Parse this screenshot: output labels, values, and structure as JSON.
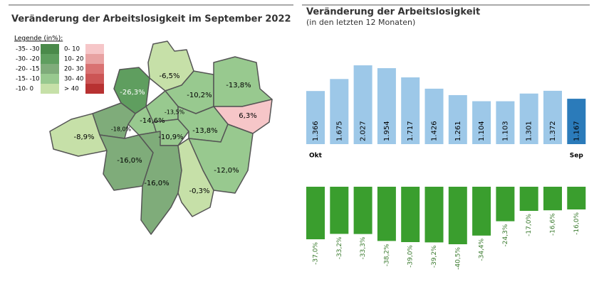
{
  "map": {
    "title": "Veränderung der Arbeitslosigkeit im September 2022",
    "legend_title": "Legende (in%):",
    "legend": [
      {
        "label": "-35- -30",
        "color": "#4a8a4a"
      },
      {
        "label": "-30- -20",
        "color": "#5f9e5f"
      },
      {
        "label": "-20- -15",
        "color": "#7fac7a"
      },
      {
        "label": "-15- -10",
        "color": "#98c98f"
      },
      {
        "label": "-10- 0",
        "color": "#c6e0a8"
      },
      {
        "label": "0- 10",
        "color": "#f6c6c8"
      },
      {
        "label": "10- 20",
        "color": "#e8a2a2"
      },
      {
        "label": "20- 30",
        "color": "#d97272"
      },
      {
        "label": "30- 40",
        "color": "#cc5555"
      },
      {
        "label": "> 40",
        "color": "#b83232"
      }
    ],
    "regions": [
      {
        "value": -6.5,
        "label": "-6,5%",
        "color": "#c6e0a8"
      },
      {
        "value": -26.3,
        "label": "-26,3%",
        "color": "#5f9e5f"
      },
      {
        "value": -10.2,
        "label": "-10,2%",
        "color": "#98c98f"
      },
      {
        "value": -13.8,
        "label": "-13,8%",
        "color": "#98c98f"
      },
      {
        "value": 6.3,
        "label": "6,3%",
        "color": "#f6c6c8"
      },
      {
        "value": -13.5,
        "label": "-13,5%",
        "color": "#98c98f"
      },
      {
        "value": -14.6,
        "label": "-14,6%",
        "color": "#98c98f"
      },
      {
        "value": -18.0,
        "label": "-18,0%",
        "color": "#7fac7a"
      },
      {
        "value": -8.9,
        "label": "-8,9%",
        "color": "#c6e0a8"
      },
      {
        "value": -10.9,
        "label": "-10,9%",
        "color": "#98c98f"
      },
      {
        "value": -13.8,
        "label": "-13,8%",
        "color": "#98c98f"
      },
      {
        "value": -16.0,
        "label": "-16,0%",
        "color": "#7fac7a"
      },
      {
        "value": -16.0,
        "label": "-16,0%",
        "color": "#7fac7a"
      },
      {
        "value": -12.0,
        "label": "-12,0%",
        "color": "#98c98f"
      },
      {
        "value": -0.3,
        "label": "-0,3%",
        "color": "#c6e0a8"
      }
    ]
  },
  "chart_data": [
    {
      "type": "bar",
      "title": "Veränderung der Arbeitslosigkeit",
      "subtitle": "(in den letzten 12 Monaten)",
      "categories": [
        "Okt",
        null,
        null,
        null,
        null,
        null,
        null,
        null,
        null,
        null,
        null,
        "Sep"
      ],
      "values": [
        1366,
        1675,
        2027,
        1954,
        1717,
        1426,
        1261,
        1104,
        1103,
        1301,
        1372,
        1167
      ],
      "value_labels": [
        "1.366",
        "1.675",
        "2.027",
        "1.954",
        "1.717",
        "1.426",
        "1.261",
        "1.104",
        "1.103",
        "1.301",
        "1.372",
        "1.167"
      ],
      "colors": [
        "#9dc8e8",
        "#9dc8e8",
        "#9dc8e8",
        "#9dc8e8",
        "#9dc8e8",
        "#9dc8e8",
        "#9dc8e8",
        "#9dc8e8",
        "#9dc8e8",
        "#9dc8e8",
        "#9dc8e8",
        "#2b7bba"
      ]
    },
    {
      "type": "bar",
      "values": [
        -37.0,
        -33.2,
        -33.3,
        -38.2,
        -39.0,
        -39.2,
        -40.5,
        -34.4,
        -24.3,
        -17.0,
        -16.6,
        -16.0
      ],
      "value_labels": [
        "-37,0%",
        "-33,2%",
        "-33,3%",
        "-38,2%",
        "-39,0%",
        "-39,2%",
        "-40,5%",
        "-34,4%",
        "-24,3%",
        "-17,0%",
        "-16,6%",
        "-16,0%"
      ],
      "color": "#3a9e2e"
    }
  ]
}
